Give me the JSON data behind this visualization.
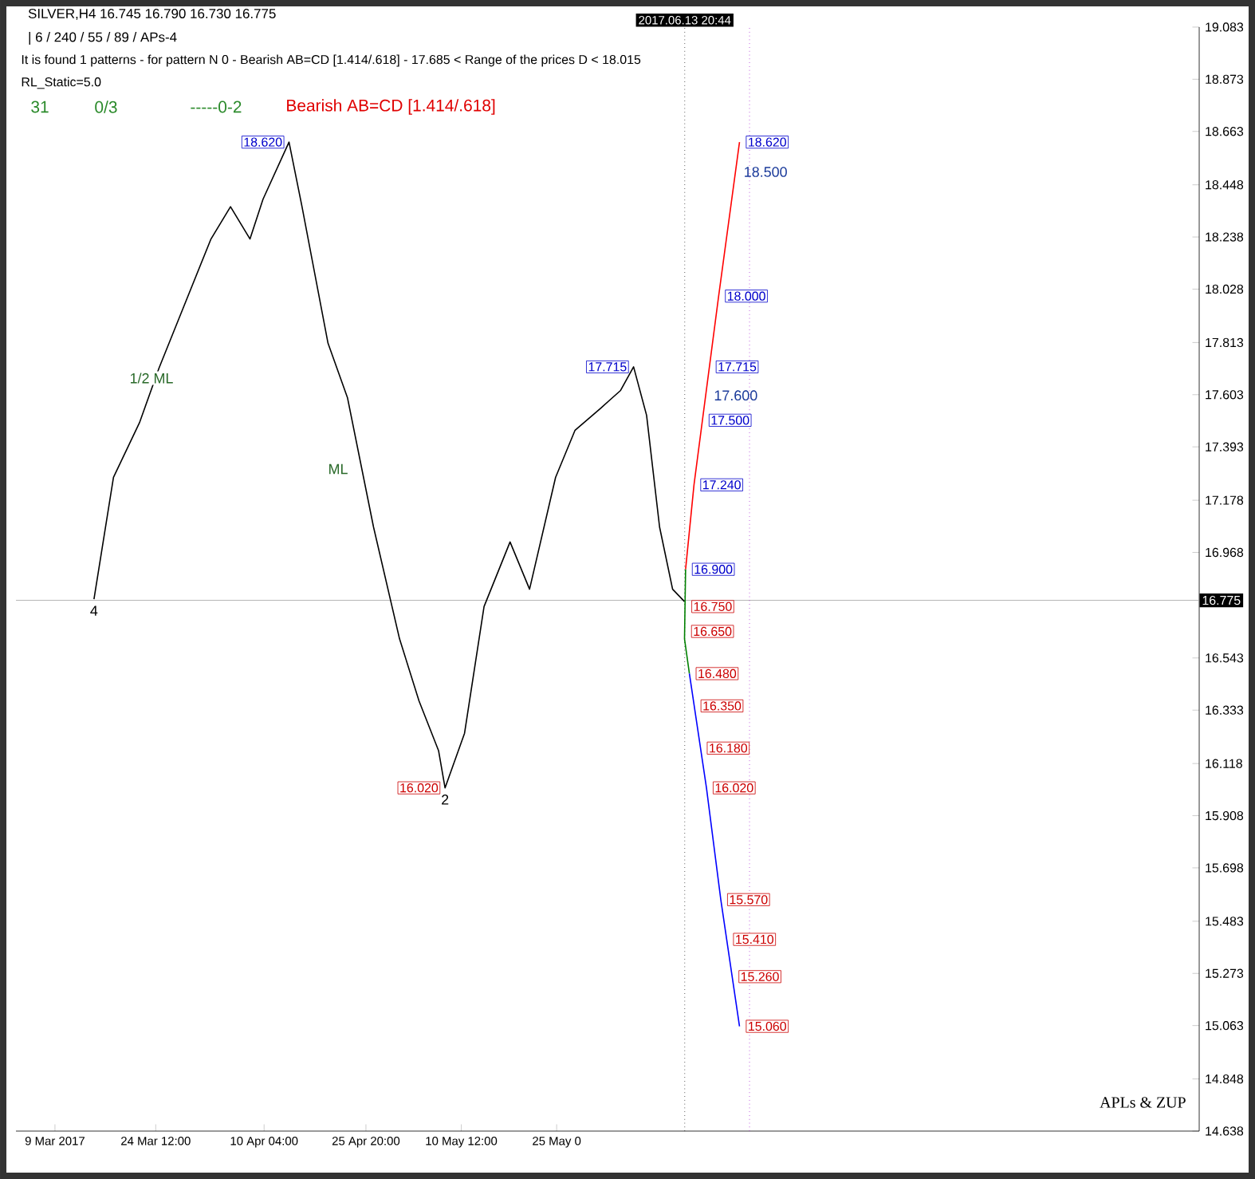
{
  "chart_data": {
    "type": "line",
    "title": "SILVER,H4  16.745 16.790 16.730 16.775",
    "subtitle": "| 6 / 240 / 55 / 89 / APs-4",
    "xlim": [
      "2017-03-03",
      "2017-09-01"
    ],
    "xticks": [
      {
        "value": "2017-03-09",
        "label": "9 Mar 2017"
      },
      {
        "value": "2017-03-24T12:00",
        "label": "24 Mar 12:00"
      },
      {
        "value": "2017-04-10T04:00",
        "label": "10 Apr 04:00"
      },
      {
        "value": "2017-04-25T20:00",
        "label": "25 Apr 20:00"
      },
      {
        "value": "2017-05-10T12:00",
        "label": "10 May 12:00"
      },
      {
        "value": "2017-05-25T04:00",
        "label": "25 May 0"
      }
    ],
    "ylim": [
      14.638,
      19.083
    ],
    "yticks": [
      14.638,
      14.848,
      15.063,
      15.273,
      15.483,
      15.698,
      15.908,
      16.118,
      16.333,
      16.543,
      16.968,
      17.178,
      17.393,
      17.603,
      17.813,
      18.028,
      18.238,
      18.448,
      18.663,
      18.873,
      19.083
    ],
    "series": [
      {
        "color": "#000000",
        "x": [
          "2017-03-15",
          "2017-03-18",
          "2017-03-22",
          "2017-03-25",
          "2017-03-29",
          "2017-04-02",
          "2017-04-05",
          "2017-04-08",
          "2017-04-10",
          "2017-04-14",
          "2017-04-16",
          "2017-04-20",
          "2017-04-23",
          "2017-04-27",
          "2017-05-01",
          "2017-05-04",
          "2017-05-07",
          "2017-05-08",
          "2017-05-11",
          "2017-05-14",
          "2017-05-18",
          "2017-05-21",
          "2017-05-25",
          "2017-05-28",
          "2017-06-01",
          "2017-06-04",
          "2017-06-06",
          "2017-06-08",
          "2017-06-10",
          "2017-06-12",
          "2017-06-13T20:00"
        ],
        "values": [
          16.78,
          17.27,
          17.49,
          17.71,
          17.97,
          18.23,
          18.36,
          18.23,
          18.39,
          18.62,
          18.36,
          17.81,
          17.59,
          17.07,
          16.62,
          16.37,
          16.17,
          16.02,
          16.24,
          16.75,
          17.01,
          16.82,
          17.27,
          17.46,
          17.55,
          17.62,
          17.715,
          17.52,
          17.07,
          16.82,
          16.77
        ]
      },
      {
        "color": "#ff0000",
        "x": [
          "2017-06-14",
          "2017-06-15T07:00",
          "2017-06-19T02:00",
          "2017-06-22T07:00"
        ],
        "values": [
          16.9,
          17.24,
          18.0,
          18.62
        ]
      },
      {
        "color": "#008000",
        "x": [
          "2017-06-14",
          "2017-06-13T20:00",
          "2017-06-14T14:00"
        ],
        "values": [
          16.9,
          16.62,
          16.48
        ]
      },
      {
        "color": "#0000ff",
        "x": [
          "2017-06-14T14:00",
          "2017-06-17T05:00",
          "2017-06-19T10:00",
          "2017-06-22T07:00"
        ],
        "values": [
          16.48,
          16.02,
          15.57,
          15.06
        ]
      }
    ],
    "ref_lines": [
      {
        "axis": "y",
        "value": 16.775,
        "label": "16.775",
        "color": "#a0a0a0",
        "line_style": "solid"
      },
      {
        "axis": "x",
        "value": "2017-06-13T20:44",
        "label": "2017.06.13 20:44",
        "color": "#000000",
        "line_style": "dotted"
      },
      {
        "axis": "x",
        "value": "2017-06-23T20:00",
        "color": "#9900cc",
        "line_style": "dotted"
      }
    ],
    "annotations": [
      "It is found 1 patterns  -  for pattern N 0 - Bearish AB=CD [1.414/.618] - 17.685 < Range of the prices D < 18.015",
      "RL_Static=5.0",
      "31",
      "0/3",
      "-----0-2",
      "Bearish AB=CD [1.414/.618]",
      "APLs & ZUP",
      "1/2 ML",
      "ML",
      {
        "text": "18.620",
        "x": "2017-04-14",
        "y": 18.62
      },
      {
        "text": "17.715",
        "x": "2017-06-06",
        "y": 17.715
      },
      {
        "text": "16.020",
        "x": "2017-05-08",
        "y": 16.02
      },
      {
        "text": "18.620",
        "x": "2017-06-22T07:00",
        "y": 18.62
      },
      {
        "text": "18.000",
        "x": "2017-06-19T02:00",
        "y": 18.0
      },
      {
        "text": "17.715",
        "x": "2017-06-17T16:00",
        "y": 17.715
      },
      {
        "text": "17.500",
        "x": "2017-06-16T14:00",
        "y": 17.5
      },
      {
        "text": "17.240",
        "x": "2017-06-15T07:00",
        "y": 17.24
      },
      {
        "text": "16.900",
        "x": "2017-06-14",
        "y": 16.9
      },
      {
        "text": "16.750",
        "x": "2017-06-13T22:00",
        "y": 16.75
      },
      {
        "text": "16.650",
        "x": "2017-06-13T21:00",
        "y": 16.65
      },
      {
        "text": "16.480",
        "x": "2017-06-14T14:00",
        "y": 16.48
      },
      {
        "text": "16.350",
        "x": "2017-06-15T08:00",
        "y": 16.35
      },
      {
        "text": "16.180",
        "x": "2017-06-16T07:00",
        "y": 16.18
      },
      {
        "text": "16.020",
        "x": "2017-06-17T05:00",
        "y": 16.02
      },
      {
        "text": "15.570",
        "x": "2017-06-19T10:00",
        "y": 15.57
      },
      {
        "text": "15.410",
        "x": "2017-06-20T08:00",
        "y": 15.41
      },
      {
        "text": "15.260",
        "x": "2017-06-21T04:00",
        "y": 15.26
      },
      {
        "text": "15.060",
        "x": "2017-06-22T07:00",
        "y": 15.06
      },
      {
        "text": "4",
        "x": "2017-03-15",
        "y": 16.78
      },
      {
        "text": "2",
        "x": "2017-05-08",
        "y": 16.02
      },
      {
        "text": "18.500",
        "x": "2017-06-21T16:00",
        "y": 18.5
      },
      {
        "text": "17.600",
        "x": "2017-06-17T02:00",
        "y": 17.6
      }
    ]
  }
}
